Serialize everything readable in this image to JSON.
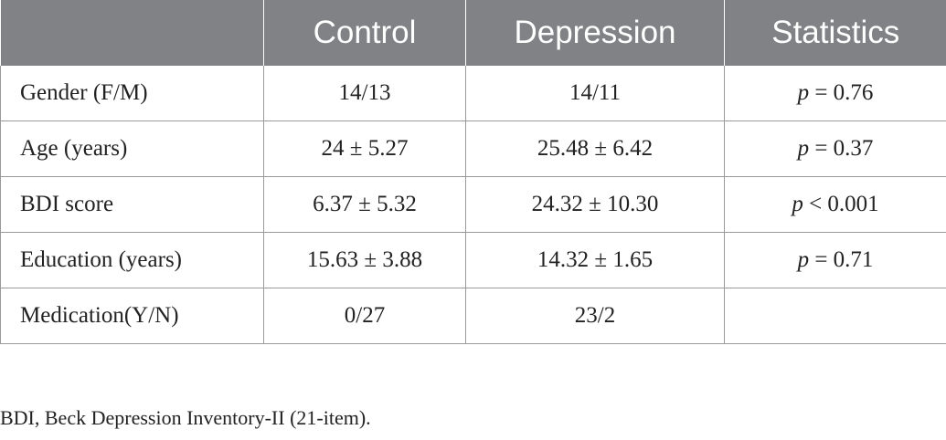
{
  "table": {
    "headers": [
      "",
      "Control",
      "Depression",
      "Statistics"
    ],
    "rows": [
      {
        "label": "Gender (F/M)",
        "control": "14/13",
        "depression": "14/11",
        "stat_symbol": "p",
        "stat_value": " = 0.76"
      },
      {
        "label": "Age (years)",
        "control": "24 ± 5.27",
        "depression": "25.48 ± 6.42",
        "stat_symbol": "p",
        "stat_value": " = 0.37"
      },
      {
        "label": "BDI score",
        "control": "6.37 ± 5.32",
        "depression": "24.32 ± 10.30",
        "stat_symbol": "p",
        "stat_value": " < 0.001"
      },
      {
        "label": "Education (years)",
        "control": "15.63 ± 3.88",
        "depression": "14.32 ± 1.65",
        "stat_symbol": "p",
        "stat_value": " = 0.71"
      },
      {
        "label": "Medication(Y/N)",
        "control": "0/27",
        "depression": "23/2",
        "stat_symbol": "",
        "stat_value": ""
      }
    ]
  },
  "footnote": "BDI, Beck Depression Inventory-II (21-item).",
  "colors": {
    "header_background": "#808285",
    "header_text": "#ffffff",
    "grid_line": "#9a9a9a"
  }
}
